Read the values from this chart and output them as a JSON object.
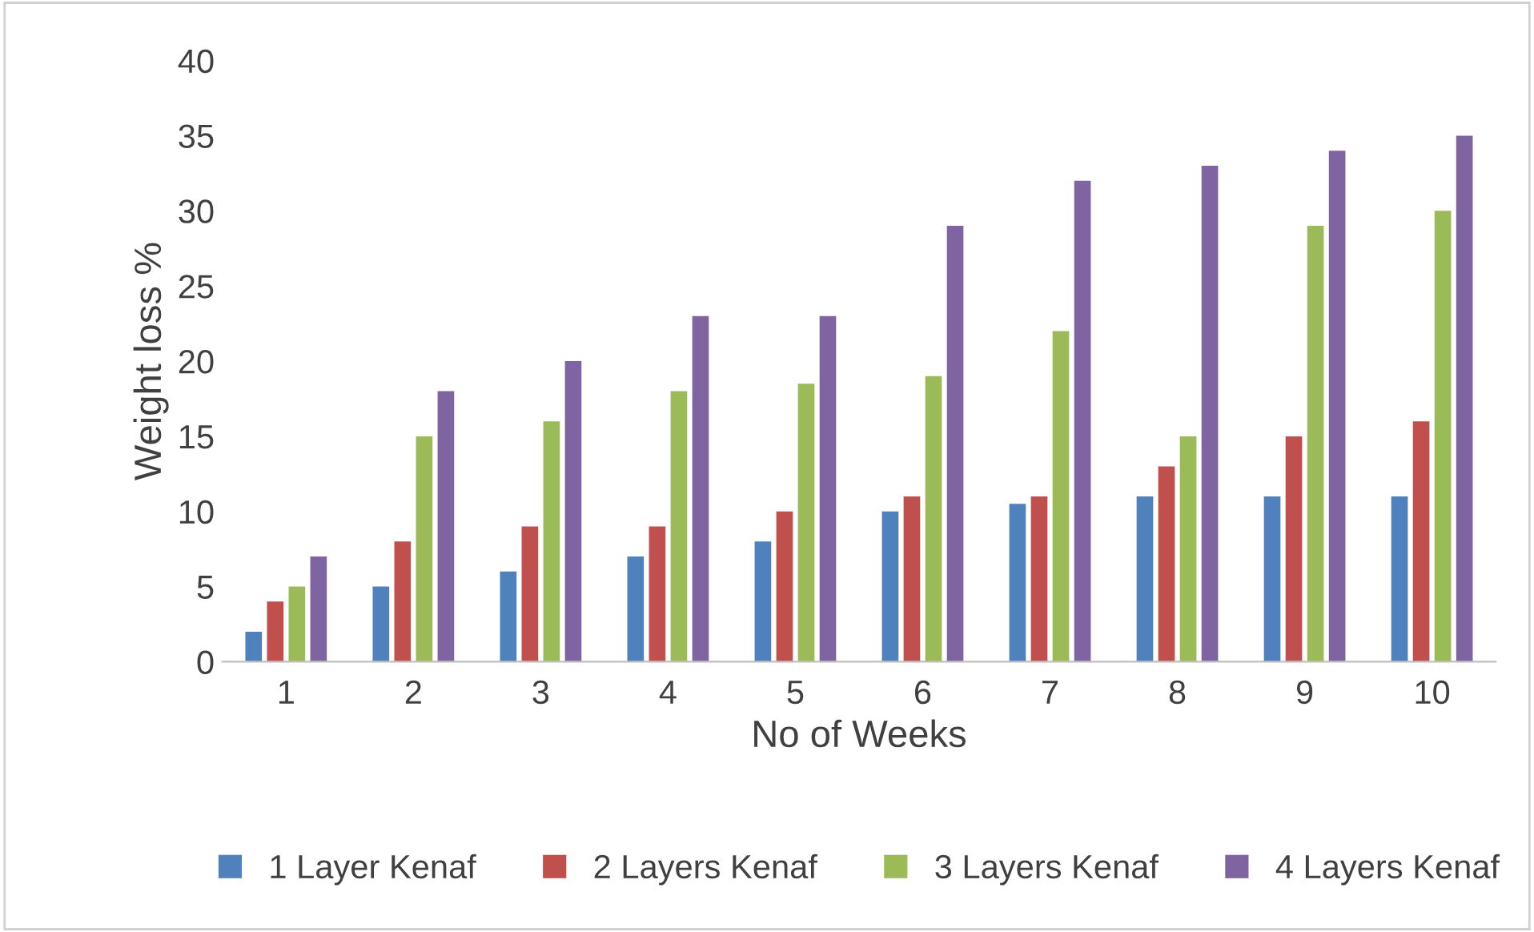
{
  "chart_data": {
    "type": "bar",
    "xlabel": "No of Weeks",
    "ylabel": "Weight loss %",
    "categories": [
      "1",
      "2",
      "3",
      "4",
      "5",
      "6",
      "7",
      "8",
      "9",
      "10"
    ],
    "series": [
      {
        "name": "1 Layer Kenaf",
        "color": "#4f81bd",
        "values": [
          2,
          5,
          6,
          7,
          8,
          10,
          10.5,
          11,
          11,
          11
        ]
      },
      {
        "name": "2 Layers Kenaf",
        "color": "#c0504d",
        "values": [
          4,
          8,
          9,
          9,
          10,
          11,
          11,
          13,
          15,
          16
        ]
      },
      {
        "name": "3 Layers Kenaf",
        "color": "#9bbb59",
        "values": [
          5,
          15,
          16,
          18,
          18.5,
          19,
          22,
          15,
          29,
          30
        ]
      },
      {
        "name": "4 Layers Kenaf",
        "color": "#8064a2",
        "values": [
          7,
          18,
          20,
          23,
          23,
          29,
          32,
          33,
          34,
          35
        ]
      }
    ],
    "ylim": [
      0,
      40
    ],
    "yticks": [
      0,
      5,
      10,
      15,
      20,
      25,
      30,
      35,
      40
    ],
    "grid": false,
    "legend": "bottom"
  }
}
